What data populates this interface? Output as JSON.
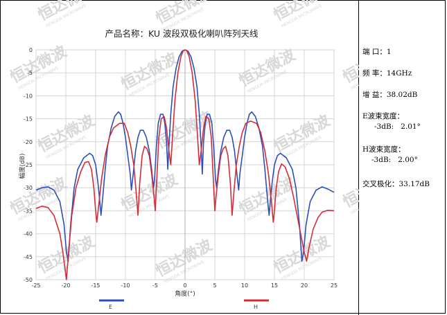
{
  "chart_data": {
    "type": "line",
    "title": "产品名称：KU 波段双极化喇叭阵列天线",
    "xlabel": "角度(°)",
    "ylabel": "幅度(dB)",
    "xlim": [
      -25,
      25
    ],
    "ylim": [
      -50,
      0
    ],
    "x_ticks": [
      -25,
      -20,
      -15,
      -10,
      -5,
      0,
      5,
      10,
      15,
      20,
      25
    ],
    "y_ticks": [
      0,
      -5,
      -10,
      -15,
      -20,
      -25,
      -30,
      -35,
      -40,
      -45,
      -50
    ],
    "grid": true,
    "legend_position": "bottom",
    "series": [
      {
        "name": "E",
        "color": "#2b4fb8",
        "points": [
          [
            -25,
            -30.5
          ],
          [
            -24,
            -30
          ],
          [
            -23,
            -29.8
          ],
          [
            -22,
            -30.5
          ],
          [
            -21,
            -33
          ],
          [
            -20.3,
            -38
          ],
          [
            -19.9,
            -44
          ],
          [
            -19.6,
            -46
          ],
          [
            -19.2,
            -38
          ],
          [
            -18.6,
            -30
          ],
          [
            -18,
            -26
          ],
          [
            -17,
            -23.5
          ],
          [
            -16,
            -22.5
          ],
          [
            -15.5,
            -23
          ],
          [
            -15,
            -25
          ],
          [
            -14.6,
            -29
          ],
          [
            -14.3,
            -33
          ],
          [
            -14.1,
            -36
          ],
          [
            -13.8,
            -32
          ],
          [
            -13.4,
            -26
          ],
          [
            -13,
            -21
          ],
          [
            -12.4,
            -17
          ],
          [
            -11.8,
            -14.5
          ],
          [
            -11.2,
            -13.5
          ],
          [
            -10.8,
            -14
          ],
          [
            -10.4,
            -16
          ],
          [
            -10,
            -19
          ],
          [
            -9.6,
            -23
          ],
          [
            -9.2,
            -27
          ],
          [
            -9,
            -30.5
          ],
          [
            -8.7,
            -27
          ],
          [
            -8.3,
            -22
          ],
          [
            -7.9,
            -19
          ],
          [
            -7.5,
            -17.5
          ],
          [
            -7,
            -17.5
          ],
          [
            -6.5,
            -19
          ],
          [
            -6,
            -22
          ],
          [
            -5.6,
            -26
          ],
          [
            -5.3,
            -30
          ],
          [
            -5.1,
            -28
          ],
          [
            -4.8,
            -21
          ],
          [
            -4.5,
            -16
          ],
          [
            -4.1,
            -14
          ],
          [
            -3.7,
            -14
          ],
          [
            -3.4,
            -16
          ],
          [
            -3.1,
            -20
          ],
          [
            -2.9,
            -26
          ],
          [
            -2.7,
            -21
          ],
          [
            -2.4,
            -14
          ],
          [
            -2,
            -8
          ],
          [
            -1.5,
            -4
          ],
          [
            -1,
            -1.5
          ],
          [
            -0.5,
            -0.3
          ],
          [
            0,
            0
          ],
          [
            0.5,
            -0.3
          ],
          [
            1,
            -1.5
          ],
          [
            1.5,
            -4
          ],
          [
            2,
            -8
          ],
          [
            2.4,
            -14
          ],
          [
            2.7,
            -21
          ],
          [
            2.9,
            -27
          ],
          [
            3.1,
            -20
          ],
          [
            3.4,
            -16
          ],
          [
            3.7,
            -14
          ],
          [
            4.1,
            -14
          ],
          [
            4.5,
            -16
          ],
          [
            4.8,
            -21
          ],
          [
            5.1,
            -28
          ],
          [
            5.3,
            -30
          ],
          [
            5.6,
            -26
          ],
          [
            6,
            -22
          ],
          [
            6.5,
            -19
          ],
          [
            7,
            -17.5
          ],
          [
            7.5,
            -17.5
          ],
          [
            7.9,
            -19
          ],
          [
            8.3,
            -22
          ],
          [
            8.7,
            -27
          ],
          [
            9,
            -30.5
          ],
          [
            9.2,
            -27
          ],
          [
            9.6,
            -23
          ],
          [
            10,
            -19
          ],
          [
            10.4,
            -16
          ],
          [
            10.8,
            -14
          ],
          [
            11.2,
            -13.5
          ],
          [
            11.8,
            -14.5
          ],
          [
            12.4,
            -17
          ],
          [
            13,
            -21
          ],
          [
            13.4,
            -26
          ],
          [
            13.8,
            -32
          ],
          [
            14.1,
            -36
          ],
          [
            14.3,
            -33
          ],
          [
            14.6,
            -29
          ],
          [
            15,
            -25
          ],
          [
            15.5,
            -23
          ],
          [
            16,
            -22.5
          ],
          [
            17,
            -23.5
          ],
          [
            18,
            -26
          ],
          [
            18.6,
            -30
          ],
          [
            19.2,
            -38
          ],
          [
            19.6,
            -46
          ],
          [
            19.9,
            -44
          ],
          [
            20.3,
            -38
          ],
          [
            21,
            -33
          ],
          [
            22,
            -30.5
          ],
          [
            23,
            -29.8
          ],
          [
            24,
            -30.3
          ],
          [
            25,
            -31
          ]
        ]
      },
      {
        "name": "H",
        "color": "#d42b3a",
        "points": [
          [
            -25,
            -34.5
          ],
          [
            -24,
            -34
          ],
          [
            -23,
            -34.3
          ],
          [
            -22,
            -36
          ],
          [
            -21,
            -40
          ],
          [
            -20.5,
            -44
          ],
          [
            -20.1,
            -48
          ],
          [
            -19.9,
            -50
          ],
          [
            -19.6,
            -45
          ],
          [
            -19,
            -36
          ],
          [
            -18.3,
            -30
          ],
          [
            -17.5,
            -26.5
          ],
          [
            -16.8,
            -24.5
          ],
          [
            -16.2,
            -24.3
          ],
          [
            -15.7,
            -26
          ],
          [
            -15.3,
            -30
          ],
          [
            -15,
            -35
          ],
          [
            -14.8,
            -37.5
          ],
          [
            -14.5,
            -34
          ],
          [
            -14,
            -28
          ],
          [
            -13.4,
            -23
          ],
          [
            -12.7,
            -19
          ],
          [
            -12,
            -17
          ],
          [
            -11,
            -16
          ],
          [
            -10.2,
            -16
          ],
          [
            -9.6,
            -18
          ],
          [
            -9.1,
            -21
          ],
          [
            -8.6,
            -25
          ],
          [
            -8.2,
            -31
          ],
          [
            -7.9,
            -36
          ],
          [
            -7.6,
            -29
          ],
          [
            -7.2,
            -23
          ],
          [
            -6.8,
            -21
          ],
          [
            -6.4,
            -21.5
          ],
          [
            -6,
            -23
          ],
          [
            -5.6,
            -27
          ],
          [
            -5.2,
            -32
          ],
          [
            -5,
            -35
          ],
          [
            -4.7,
            -27
          ],
          [
            -4.4,
            -19
          ],
          [
            -4,
            -15
          ],
          [
            -3.5,
            -14.5
          ],
          [
            -3.1,
            -17
          ],
          [
            -2.7,
            -22
          ],
          [
            -2.4,
            -25
          ],
          [
            -2.1,
            -19
          ],
          [
            -1.7,
            -11
          ],
          [
            -1.2,
            -5
          ],
          [
            -0.7,
            -1.5
          ],
          [
            -0.3,
            -0.2
          ],
          [
            0,
            0
          ],
          [
            0.3,
            -0.2
          ],
          [
            0.7,
            -1.5
          ],
          [
            1.2,
            -5
          ],
          [
            1.7,
            -11
          ],
          [
            2.1,
            -19
          ],
          [
            2.4,
            -25
          ],
          [
            2.7,
            -22
          ],
          [
            3.1,
            -17
          ],
          [
            3.5,
            -14.5
          ],
          [
            4,
            -15
          ],
          [
            4.4,
            -19
          ],
          [
            4.7,
            -27
          ],
          [
            5,
            -35
          ],
          [
            5.2,
            -32
          ],
          [
            5.6,
            -27
          ],
          [
            6,
            -23
          ],
          [
            6.4,
            -21.5
          ],
          [
            6.8,
            -21
          ],
          [
            7.2,
            -23
          ],
          [
            7.6,
            -29
          ],
          [
            7.9,
            -36
          ],
          [
            8.2,
            -31
          ],
          [
            8.6,
            -25
          ],
          [
            9.1,
            -21
          ],
          [
            9.6,
            -18
          ],
          [
            10.2,
            -16
          ],
          [
            11,
            -15.5
          ],
          [
            12,
            -16
          ],
          [
            12.7,
            -18
          ],
          [
            13.4,
            -22
          ],
          [
            14,
            -27
          ],
          [
            14.5,
            -33
          ],
          [
            14.8,
            -37.5
          ],
          [
            15,
            -35
          ],
          [
            15.3,
            -30
          ],
          [
            15.7,
            -26.5
          ],
          [
            16.2,
            -24.8
          ],
          [
            16.8,
            -25.5
          ],
          [
            17.5,
            -28
          ],
          [
            18.2,
            -32
          ],
          [
            18.8,
            -36
          ],
          [
            19.4,
            -40
          ],
          [
            20,
            -44
          ],
          [
            20.4,
            -46
          ],
          [
            20.8,
            -43
          ],
          [
            21.5,
            -39
          ],
          [
            22.3,
            -36.5
          ],
          [
            23,
            -35.3
          ],
          [
            24,
            -34.9
          ],
          [
            25,
            -35
          ]
        ]
      }
    ]
  },
  "info": {
    "port": "端 口：1",
    "frequency": "频 率：14GHz",
    "gain": "增 益：38.02dB",
    "e_beamwidth_label": "E波束宽度：",
    "e_beamwidth_value": "-3dB:   2.01°",
    "h_beamwidth_label": "H波束宽度：",
    "h_beamwidth_value": "-3dB:   2.00°",
    "cross_pol": "交叉极化：33.17dB"
  },
  "watermark": {
    "text": "恒达微波",
    "subtext": "HENGDA MICROWAVE",
    "color": "#d8d8d8"
  }
}
